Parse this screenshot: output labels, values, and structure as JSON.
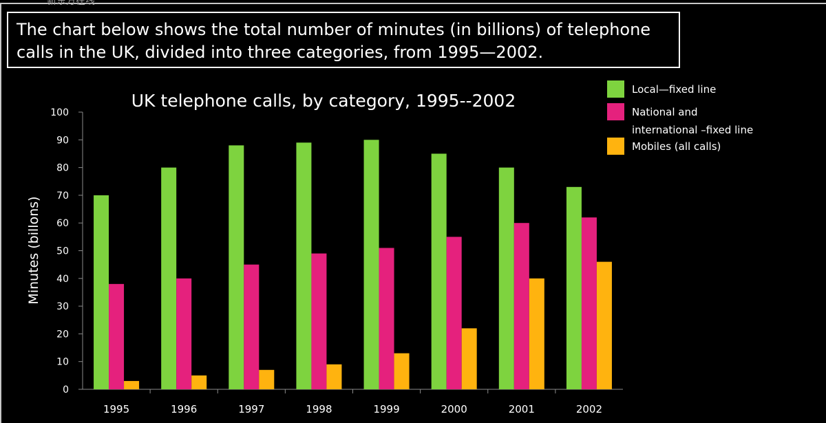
{
  "watermark": "新东方在线",
  "caption": {
    "line1": "The chart below shows the total number of minutes (in billions) of telephone",
    "line2": "calls in the UK, divided into three categories, from 1995—2002."
  },
  "colors": {
    "background": "#000000",
    "text": "#ffffff",
    "local": "#7ed33f",
    "national": "#e5217d",
    "mobiles": "#ffb30f"
  },
  "chart_data": {
    "type": "bar",
    "title": "UK telephone calls, by category, 1995--2002",
    "xlabel": "",
    "ylabel": "Minutes (billons)",
    "ylim": [
      0,
      100
    ],
    "yticks": [
      "0",
      "10",
      "20",
      "30",
      "40",
      "50",
      "60",
      "70",
      "80",
      "90",
      "100"
    ],
    "grid": false,
    "legend_position": "top-right",
    "categories": [
      "1995",
      "1996",
      "1997",
      "1998",
      "1999",
      "2000",
      "2001",
      "2002"
    ],
    "series": [
      {
        "name": "Local—fixed line",
        "color": "#7ed33f",
        "values": [
          70,
          80,
          88,
          89,
          90,
          85,
          80,
          73
        ]
      },
      {
        "name": "National and international –fixed line",
        "legend_lines": [
          "National and",
          " international –fixed line"
        ],
        "color": "#e5217d",
        "values": [
          38,
          40,
          45,
          49,
          51,
          55,
          60,
          62
        ]
      },
      {
        "name": "Mobiles (all calls)",
        "color": "#ffb30f",
        "values": [
          3,
          5,
          7,
          9,
          13,
          22,
          40,
          46
        ]
      }
    ]
  }
}
